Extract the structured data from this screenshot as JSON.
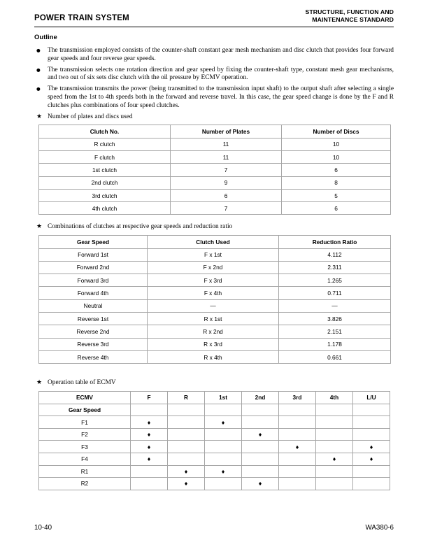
{
  "header": {
    "left_title": "POWER TRAIN SYSTEM",
    "right_title_line1": "STRUCTURE, FUNCTION AND",
    "right_title_line2": "MAINTENANCE STANDARD"
  },
  "outline": {
    "title": "Outline"
  },
  "bullets": [
    "The transmission employed consists of the counter-shaft constant gear mesh mechanism and disc clutch that provides four forward gear speeds and four reverse gear speeds.",
    "The transmission selects one rotation direction and gear speed by fixing the counter-shaft type, constant mesh gear mechanisms, and two out of six sets disc clutch with the oil pressure by ECMV operation.",
    "The transmission transmits the power (being transmitted to the transmission input shaft) to the output shaft after selecting a single speed from the 1st to 4th speeds both in the forward and reverse travel. In this case, the gear speed change is done by the F and R clutches plus combinations of four speed clutches."
  ],
  "icons": {
    "bullet": "●",
    "star": "★",
    "diamond": "♦"
  },
  "plates_table": {
    "caption": "Number of plates and discs used",
    "headers": [
      "Clutch No.",
      "Number of Plates",
      "Number of Discs"
    ],
    "rows": [
      [
        "R clutch",
        "11",
        "10"
      ],
      [
        "F clutch",
        "11",
        "10"
      ],
      [
        "1st clutch",
        "7",
        "6"
      ],
      [
        "2nd clutch",
        "9",
        "8"
      ],
      [
        "3rd clutch",
        "6",
        "5"
      ],
      [
        "4th clutch",
        "7",
        "6"
      ]
    ]
  },
  "combinations_table": {
    "caption": "Combinations of clutches at respective gear speeds and reduction ratio",
    "headers": [
      "Gear Speed",
      "Clutch Used",
      "Reduction Ratio"
    ],
    "rows": [
      [
        "Forward 1st",
        "F x 1st",
        "4.112"
      ],
      [
        "Forward 2nd",
        "F x 2nd",
        "2.311"
      ],
      [
        "Forward 3rd",
        "F x 3rd",
        "1.265"
      ],
      [
        "Forward 4th",
        "F x 4th",
        "0.711"
      ],
      [
        "Neutral",
        "—",
        "—"
      ],
      [
        "Reverse 1st",
        "R x 1st",
        "3.826"
      ],
      [
        "Reverse 2nd",
        "R x 2nd",
        "2.151"
      ],
      [
        "Reverse 3rd",
        "R x 3rd",
        "1.178"
      ],
      [
        "Reverse 4th",
        "R x 4th",
        "0.661"
      ]
    ]
  },
  "ecmv_table": {
    "caption": "Operation table of ECMV",
    "corner_top_label": "ECMV",
    "corner_bottom_label": "Gear Speed",
    "column_headers": [
      "F",
      "R",
      "1st",
      "2nd",
      "3rd",
      "4th",
      "L/U"
    ],
    "rows": [
      {
        "label": "F1",
        "marks": [
          1,
          0,
          1,
          0,
          0,
          0,
          0
        ]
      },
      {
        "label": "F2",
        "marks": [
          1,
          0,
          0,
          1,
          0,
          0,
          0
        ]
      },
      {
        "label": "F3",
        "marks": [
          1,
          0,
          0,
          0,
          1,
          0,
          1
        ]
      },
      {
        "label": "F4",
        "marks": [
          1,
          0,
          0,
          0,
          0,
          1,
          1
        ]
      },
      {
        "label": "R1",
        "marks": [
          0,
          1,
          1,
          0,
          0,
          0,
          0
        ]
      },
      {
        "label": "R2",
        "marks": [
          0,
          1,
          0,
          1,
          0,
          0,
          0
        ]
      }
    ]
  },
  "footer": {
    "page_number": "10-40",
    "model_code": "WA380-6"
  }
}
